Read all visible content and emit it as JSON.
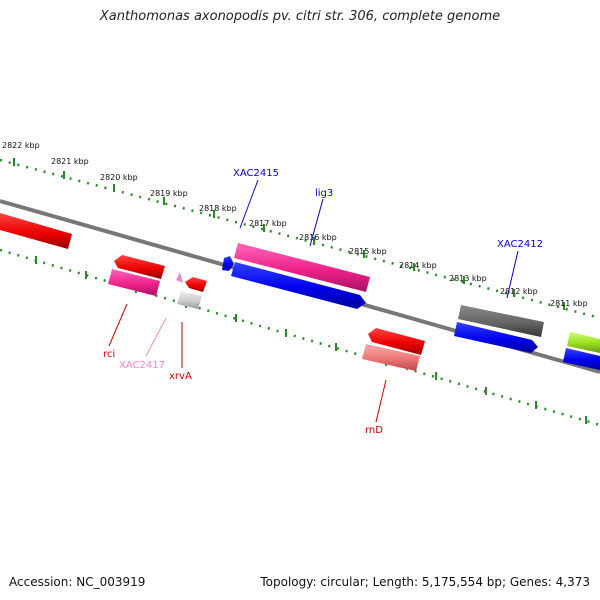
{
  "title": "Xanthomonas axonopodis pv. citri str. 306, complete genome",
  "accession": "Accession: NC_003919",
  "info": "Topology: circular; Length: 5,175,554 bp; Genes: 4,373",
  "kbp_labels": [
    "2822 kbp",
    "2821 kbp",
    "2820 kbp",
    "2819 kbp",
    "2818 kbp",
    "2817 kbp",
    "2816 kbp",
    "2815 kbp",
    "2814 kbp",
    "2813 kbp",
    "2812 kbp",
    "2811 kbp"
  ],
  "genes": {
    "XAC2415": "XAC2415",
    "lig3": "lig3",
    "XAC2412": "XAC2412",
    "rci": "rci",
    "XAC2417": "XAC2417",
    "xrvA": "xrvA",
    "rnD": "rnD"
  },
  "colors": {
    "blue_label": "#0000cc",
    "red_label": "#cc0000",
    "pink_label": "#ee88cc",
    "ruler": "#2a8a2a",
    "backbone": "#777777"
  }
}
